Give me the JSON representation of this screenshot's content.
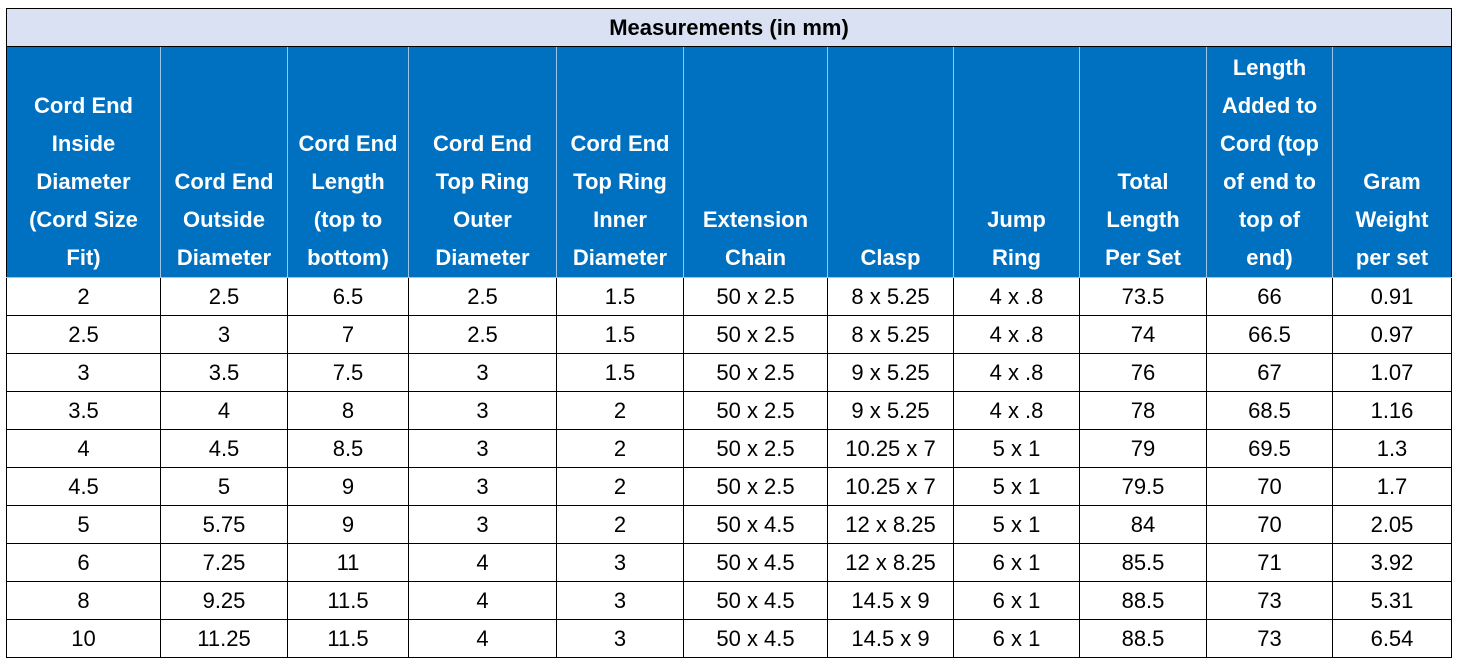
{
  "title": "Measurements (in mm)",
  "header": [
    [
      "Cord End",
      "Inside",
      "Diameter",
      "(Cord Size",
      "Fit)"
    ],
    [
      "Cord End",
      "Outside",
      "Diameter"
    ],
    [
      "Cord End",
      "Length",
      "(top to",
      "bottom)"
    ],
    [
      "Cord End",
      "Top Ring",
      "Outer",
      "Diameter"
    ],
    [
      "Cord End",
      "Top Ring",
      "Inner",
      "Diameter"
    ],
    [
      "Extension",
      "Chain"
    ],
    [
      "Clasp"
    ],
    [
      "Jump",
      "Ring"
    ],
    [
      "Total",
      "Length",
      "Per Set"
    ],
    [
      "Length",
      "Added to",
      "Cord (top",
      "of end to",
      "top of",
      "end)"
    ],
    [
      "Gram",
      "Weight",
      "per set"
    ]
  ],
  "rows": [
    [
      "2",
      "2.5",
      "6.5",
      "2.5",
      "1.5",
      "50 x 2.5",
      "8 x 5.25",
      "4 x .8",
      "73.5",
      "66",
      "0.91"
    ],
    [
      "2.5",
      "3",
      "7",
      "2.5",
      "1.5",
      "50 x 2.5",
      "8 x 5.25",
      "4 x .8",
      "74",
      "66.5",
      "0.97"
    ],
    [
      "3",
      "3.5",
      "7.5",
      "3",
      "1.5",
      "50 x 2.5",
      "9 x 5.25",
      "4 x .8",
      "76",
      "67",
      "1.07"
    ],
    [
      "3.5",
      "4",
      "8",
      "3",
      "2",
      "50 x 2.5",
      "9 x 5.25",
      "4 x .8",
      "78",
      "68.5",
      "1.16"
    ],
    [
      "4",
      "4.5",
      "8.5",
      "3",
      "2",
      "50 x 2.5",
      "10.25 x 7",
      "5 x 1",
      "79",
      "69.5",
      "1.3"
    ],
    [
      "4.5",
      "5",
      "9",
      "3",
      "2",
      "50 x 2.5",
      "10.25 x 7",
      "5 x 1",
      "79.5",
      "70",
      "1.7"
    ],
    [
      "5",
      "5.75",
      "9",
      "3",
      "2",
      "50 x 4.5",
      "12 x 8.25",
      "5 x 1",
      "84",
      "70",
      "2.05"
    ],
    [
      "6",
      "7.25",
      "11",
      "4",
      "3",
      "50 x 4.5",
      "12 x 8.25",
      "6 x 1",
      "85.5",
      "71",
      "3.92"
    ],
    [
      "8",
      "9.25",
      "11.5",
      "4",
      "3",
      "50 x 4.5",
      "14.5 x 9",
      "6 x 1",
      "88.5",
      "73",
      "5.31"
    ],
    [
      "10",
      "11.25",
      "11.5",
      "4",
      "3",
      "50 x 4.5",
      "14.5 x 9",
      "6 x 1",
      "88.5",
      "73",
      "6.54"
    ]
  ]
}
